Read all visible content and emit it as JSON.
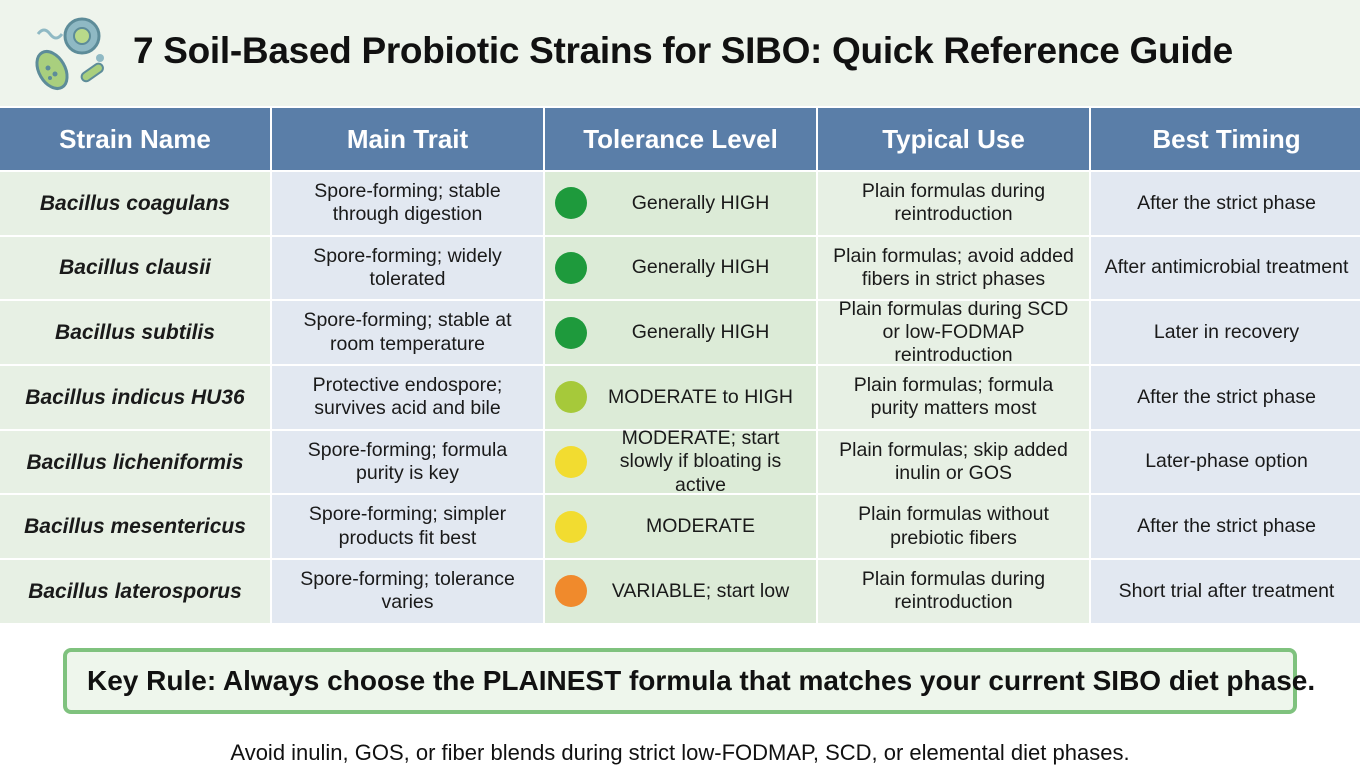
{
  "header": {
    "title": "7 Soil-Based Probiotic Strains for SIBO: Quick Reference Guide"
  },
  "table": {
    "columns": [
      "Strain Name",
      "Main Trait",
      "Tolerance Level",
      "Typical Use",
      "Best Timing"
    ],
    "rows": [
      [
        "Bacillus coagulans",
        "Spore-forming; stable through digestion",
        "Generally HIGH",
        "Plain formulas during reintroduction",
        "After the strict phase"
      ],
      [
        "Bacillus clausii",
        "Spore-forming; widely tolerated",
        "Generally HIGH",
        "Plain formulas; avoid added fibers in strict phases",
        "After antimicrobial treatment"
      ],
      [
        "Bacillus subtilis",
        "Spore-forming; stable at room temperature",
        "Generally HIGH",
        "Plain formulas during SCD or low-FODMAP reintroduction",
        "Later in recovery"
      ],
      [
        "Bacillus indicus HU36",
        "Protective endospore; survives acid and bile",
        "MODERATE to HIGH",
        "Plain formulas; formula purity matters most",
        "After the strict phase"
      ],
      [
        "Bacillus licheniformis",
        "Spore-forming; formula purity is key",
        "MODERATE; start slowly if bloating is active",
        "Plain formulas; skip added inulin or GOS",
        "Later-phase option"
      ],
      [
        "Bacillus mesentericus",
        "Spore-forming; simpler products fit best",
        "MODERATE",
        "Plain formulas without prebiotic fibers",
        "After the strict phase"
      ],
      [
        "Bacillus laterosporus",
        "Spore-forming; tolerance varies",
        "VARIABLE; start low",
        "Plain formulas during reintroduction",
        "Short trial after treatment"
      ]
    ],
    "tolerance_colors": [
      "#1e9a3c",
      "#1e9a3c",
      "#1e9a3c",
      "#a6c93a",
      "#f2dc30",
      "#f2dc30",
      "#f08a2c"
    ]
  },
  "key_rule": "Key Rule: Always choose the PLAINEST formula that matches your current SIBO diet phase.",
  "footnote": "Avoid inulin, GOS, or fiber blends during strict low-FODMAP, SCD, or elemental diet phases."
}
